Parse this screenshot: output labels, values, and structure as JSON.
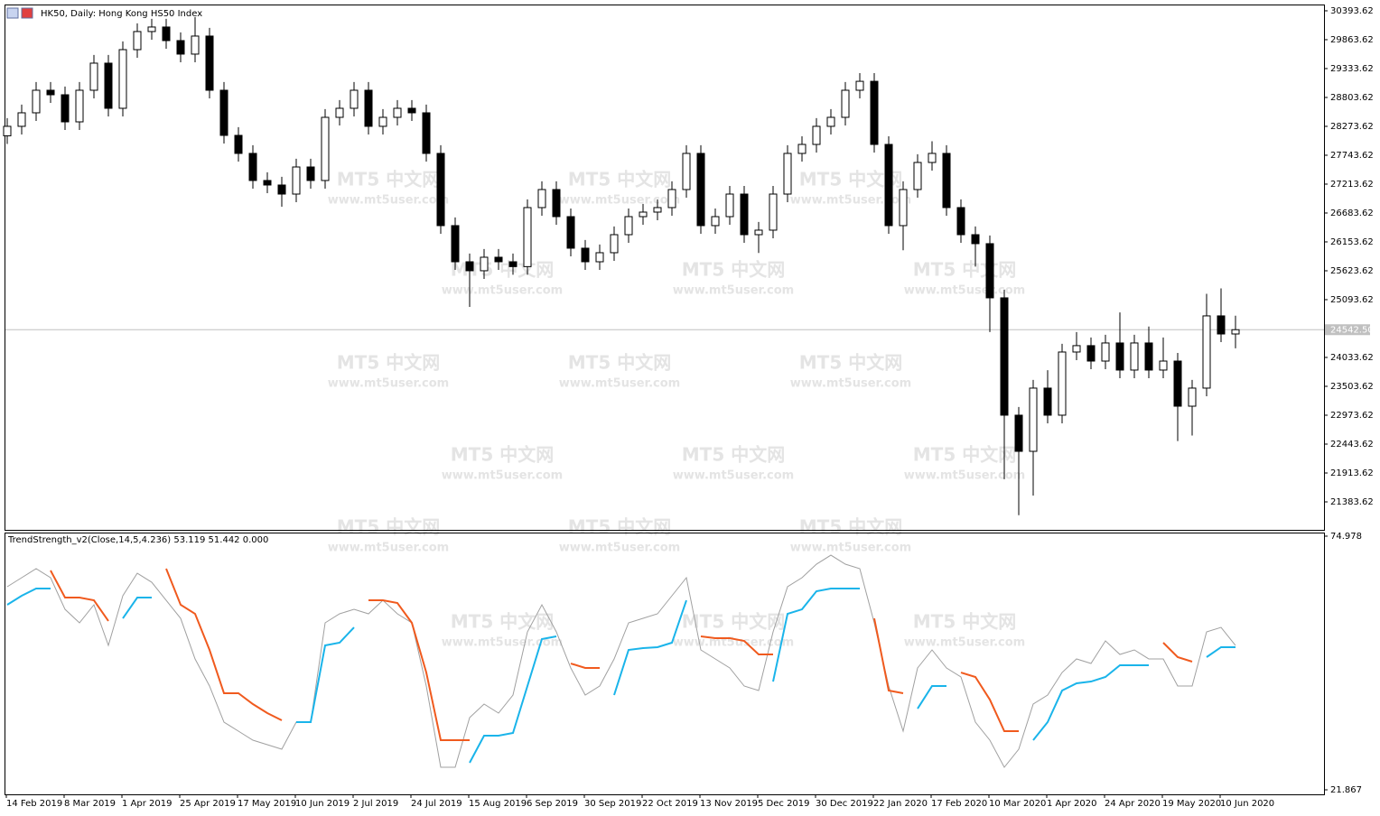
{
  "title": "HK50, Daily:  Hong Kong HS50 Index",
  "watermark": {
    "name": "MT5 中文网",
    "url": "www.mt5user.com"
  },
  "chart_data": [
    {
      "type": "candlestick",
      "categories": [
        "14 Feb 2019",
        null,
        null,
        null,
        "8 Mar 2019",
        null,
        null,
        null,
        "1 Apr 2019",
        null,
        null,
        null,
        "25 Apr 2019",
        null,
        null,
        null,
        "17 May 2019",
        null,
        null,
        null,
        "10 Jun 2019",
        null,
        null,
        null,
        "2 Jul 2019",
        null,
        null,
        null,
        "24 Jul 2019",
        null,
        null,
        null,
        "15 Aug 2019",
        null,
        null,
        null,
        "6 Sep 2019",
        null,
        null,
        null,
        "30 Sep 2019",
        null,
        null,
        null,
        "22 Oct 2019",
        null,
        null,
        null,
        "13 Nov 2019",
        null,
        null,
        null,
        "5 Dec 2019",
        null,
        null,
        null,
        "30 Dec 2019",
        null,
        null,
        null,
        "22 Jan 2020",
        null,
        null,
        null,
        "17 Feb 2020",
        null,
        null,
        null,
        "10 Mar 2020",
        null,
        null,
        null,
        "1 Apr 2020",
        null,
        null,
        null,
        "24 Apr 2020",
        null,
        null,
        null,
        "19 May 2020",
        null,
        null,
        null,
        "10 Jun 2020",
        null
      ],
      "open": [
        28100,
        28274,
        28522,
        28936,
        28853,
        28356,
        28936,
        29433,
        28605,
        29681,
        30013,
        30096,
        29847,
        29599,
        29930,
        28936,
        28108,
        27777,
        27280,
        27197,
        27031,
        27528,
        27280,
        28439,
        28605,
        28936,
        28274,
        28439,
        28605,
        28522,
        27777,
        26452,
        25789,
        25624,
        25872,
        25789,
        25700,
        26783,
        27114,
        26617,
        26038,
        25789,
        25955,
        26286,
        26617,
        26700,
        26783,
        27114,
        27777,
        26452,
        26617,
        27031,
        26286,
        26369,
        27031,
        27777,
        27942,
        28274,
        28439,
        28936,
        29100,
        27942,
        26452,
        27114,
        27611,
        27777,
        26783,
        26286,
        26121,
        25127,
        22974,
        22311,
        23471,
        22974,
        24133,
        24250,
        23967,
        24299,
        23802,
        24299,
        23802,
        23967,
        23139,
        23471,
        24796,
        24464
      ],
      "high": [
        28424,
        28672,
        29086,
        29086,
        29003,
        29086,
        29583,
        29583,
        29831,
        30163,
        30246,
        30246,
        29997,
        30280,
        30080,
        29086,
        28258,
        27927,
        27430,
        27347,
        27678,
        27678,
        28589,
        28755,
        29086,
        29086,
        28589,
        28755,
        28755,
        28672,
        27927,
        26602,
        25939,
        26022,
        26022,
        25939,
        26933,
        27264,
        27264,
        26767,
        26188,
        26105,
        26436,
        26767,
        26850,
        26933,
        27264,
        27927,
        27927,
        26767,
        27181,
        27181,
        26519,
        27181,
        27927,
        28092,
        28424,
        28589,
        29086,
        29250,
        29250,
        28092,
        27264,
        27761,
        28000,
        27927,
        26933,
        26436,
        26271,
        25277,
        23124,
        23621,
        23800,
        24283,
        24500,
        24400,
        24449,
        24860,
        24449,
        24600,
        24400,
        24117,
        23621,
        25200,
        25300,
        24800
      ],
      "low": [
        27950,
        28124,
        28372,
        28703,
        28206,
        28206,
        28786,
        28455,
        28455,
        29531,
        29863,
        29697,
        29449,
        29449,
        28786,
        27958,
        27627,
        27130,
        27047,
        26800,
        26881,
        27130,
        27130,
        28289,
        28455,
        28124,
        28124,
        28289,
        28372,
        27627,
        26302,
        25639,
        24960,
        25474,
        25639,
        25550,
        25550,
        26633,
        26467,
        25888,
        25639,
        25639,
        25805,
        26136,
        26467,
        26550,
        26633,
        26964,
        26302,
        26302,
        26467,
        26136,
        25950,
        26219,
        26881,
        27627,
        27792,
        28124,
        28289,
        28786,
        27792,
        26302,
        26000,
        26964,
        27461,
        26633,
        26136,
        25700,
        24500,
        21800,
        21140,
        21500,
        22824,
        22824,
        23983,
        23817,
        23817,
        23652,
        23652,
        23652,
        23652,
        22500,
        22600,
        23321,
        24314,
        24200
      ],
      "close": [
        28274,
        28522,
        28936,
        28853,
        28356,
        28936,
        29433,
        28605,
        29681,
        30013,
        30096,
        29847,
        29599,
        29930,
        28936,
        28108,
        27777,
        27280,
        27197,
        27031,
        27528,
        27280,
        28439,
        28605,
        28936,
        28274,
        28439,
        28605,
        28522,
        27777,
        26452,
        25789,
        25624,
        25872,
        25789,
        25700,
        26783,
        27114,
        26617,
        26038,
        25789,
        25955,
        26286,
        26617,
        26700,
        26783,
        27114,
        27777,
        26452,
        26617,
        27031,
        26286,
        26369,
        27031,
        27777,
        27942,
        28274,
        28439,
        28936,
        29100,
        27942,
        26452,
        27114,
        27611,
        27777,
        26783,
        26286,
        26121,
        25127,
        22974,
        22311,
        23471,
        22974,
        24133,
        24250,
        23967,
        24299,
        23802,
        24299,
        23802,
        23967,
        23139,
        23471,
        24796,
        24464,
        24542.5
      ],
      "up_color": "#ffffff",
      "down_color": "#000000",
      "edge_color": "#000000",
      "ylim": [
        20870,
        30509
      ],
      "yticks": [
        30393.62,
        29863.62,
        29333.62,
        28803.62,
        28273.62,
        27743.62,
        27213.62,
        26683.62,
        26153.62,
        25623.62,
        25093.62,
        24033.62,
        23503.62,
        22973.62,
        22443.62,
        21913.62,
        21383.62
      ],
      "current_price": {
        "value": 24542.5,
        "label": "24542.50"
      }
    },
    {
      "type": "line",
      "title": "TrendStrength_v2(Close,14,5,4.236) 53.119 51.442 0.000",
      "series": [
        {
          "color": "#a0a0a0",
          "values": [
            64.39,
            66.28,
            68.17,
            66.28,
            59.66,
            56.83,
            60.61,
            52.1,
            62.5,
            67.22,
            65.33,
            61.55,
            57.77,
            49.27,
            43.6,
            36.04,
            34.15,
            32.26,
            31.31,
            30.37,
            36.04,
            36.04,
            56.83,
            58.72,
            59.66,
            58.72,
            61.55,
            58.72,
            56.83,
            43.6,
            26.59,
            26.59,
            36.98,
            39.82,
            37.93,
            41.71,
            54.94,
            60.61,
            54.94,
            47.38,
            41.71,
            43.6,
            49.27,
            56.83,
            57.77,
            58.72,
            62.5,
            66.28,
            51.16,
            49.27,
            47.38,
            43.6,
            42.65,
            54.94,
            64.39,
            66.28,
            69.11,
            71.0,
            69.11,
            68.17,
            56.83,
            43.6,
            34.15,
            47.38,
            51.16,
            47.38,
            45.49,
            36.04,
            32.26,
            26.59,
            30.37,
            39.82,
            41.71,
            46.43,
            49.27,
            48.32,
            53.05,
            50.21,
            51.16,
            49.27,
            49.27,
            43.6,
            43.6,
            54.94,
            55.88,
            52.1
          ]
        },
        {
          "color": "#f05a1e",
          "values": [
            null,
            null,
            null,
            67.79,
            62.12,
            62.12,
            61.55,
            57.21,
            null,
            null,
            null,
            68.17,
            60.61,
            58.72,
            51.16,
            42.09,
            42.09,
            39.82,
            37.93,
            36.42,
            null,
            null,
            null,
            null,
            null,
            61.55,
            61.55,
            60.99,
            56.83,
            46.43,
            32.26,
            32.26,
            32.26,
            null,
            null,
            null,
            null,
            null,
            null,
            48.32,
            47.38,
            47.38,
            null,
            null,
            null,
            null,
            null,
            null,
            53.99,
            53.62,
            53.62,
            53.05,
            50.21,
            50.21,
            null,
            null,
            null,
            null,
            null,
            null,
            57.77,
            42.65,
            42.09,
            null,
            null,
            null,
            46.43,
            45.49,
            40.76,
            34.15,
            34.15,
            null,
            null,
            null,
            null,
            null,
            null,
            null,
            null,
            null,
            52.67,
            49.65,
            48.7,
            null,
            null,
            null
          ]
        },
        {
          "color": "#1ab4ea",
          "values": [
            60.61,
            62.5,
            64.01,
            64.01,
            null,
            null,
            null,
            null,
            57.77,
            62.12,
            62.12,
            null,
            null,
            null,
            null,
            null,
            null,
            null,
            null,
            null,
            36.04,
            36.04,
            52.1,
            52.67,
            55.88,
            null,
            null,
            null,
            null,
            null,
            null,
            null,
            27.53,
            33.2,
            33.2,
            33.77,
            43.6,
            53.43,
            53.99,
            null,
            null,
            null,
            41.71,
            51.16,
            51.54,
            51.73,
            52.67,
            61.55,
            null,
            null,
            null,
            null,
            null,
            44.54,
            58.72,
            59.66,
            63.44,
            64.01,
            64.01,
            64.01,
            null,
            null,
            null,
            38.87,
            43.6,
            43.6,
            null,
            null,
            null,
            null,
            null,
            32.26,
            36.04,
            42.65,
            44.17,
            44.54,
            45.49,
            47.95,
            47.95,
            47.95,
            null,
            null,
            null,
            49.65,
            51.73,
            51.73
          ]
        }
      ],
      "ylim": [
        20.92,
        75.73
      ],
      "yticks": [
        74.978,
        21.867
      ]
    }
  ]
}
